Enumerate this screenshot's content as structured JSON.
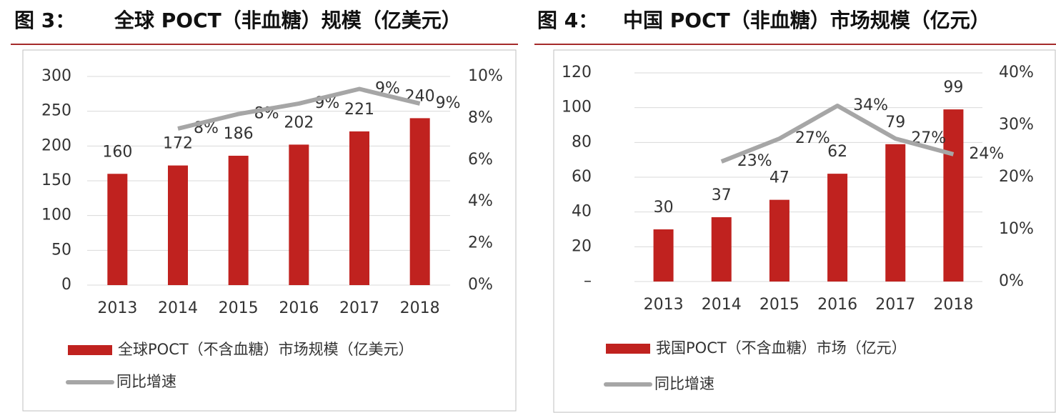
{
  "chart_data": [
    {
      "type": "bar",
      "label": "图 3：",
      "title": "全球 POCT（非血糖）规模（亿美元）",
      "categories": [
        "2013",
        "2014",
        "2015",
        "2016",
        "2017",
        "2018"
      ],
      "series": [
        {
          "name": "全球POCT（不含血糖）市场规模（亿美元）",
          "color": "#c0221f",
          "values": [
            160,
            172,
            186,
            202,
            221,
            240
          ]
        },
        {
          "name": "同比增速",
          "type": "line",
          "axis": "y2",
          "color": "#a6a6a6",
          "values": [
            null,
            7.5,
            8.2,
            8.7,
            9.4,
            8.7
          ],
          "value_labels": [
            null,
            "8%",
            "8%",
            "9%",
            "9%",
            "9%"
          ]
        }
      ],
      "ylim": [
        0,
        300
      ],
      "yticks": [
        0,
        50,
        100,
        150,
        200,
        250,
        300
      ],
      "y2lim": [
        0,
        10
      ],
      "y2ticks": [
        {
          "value": 0,
          "label": "0%"
        },
        {
          "value": 2,
          "label": "2%"
        },
        {
          "value": 4,
          "label": "4%"
        },
        {
          "value": 6,
          "label": "6%"
        },
        {
          "value": 8,
          "label": "8%"
        },
        {
          "value": 10,
          "label": "10%"
        }
      ],
      "grid": true
    },
    {
      "type": "bar",
      "label": "图 4：",
      "title": "中国 POCT（非血糖）市场规模（亿元）",
      "categories": [
        "2013",
        "2014",
        "2015",
        "2016",
        "2017",
        "2018"
      ],
      "series": [
        {
          "name": "我国POCT（不含血糖）市场（亿元）",
          "color": "#c0221f",
          "values": [
            30,
            37,
            47,
            62,
            79,
            99
          ]
        },
        {
          "name": "同比增速",
          "type": "line",
          "axis": "y2",
          "color": "#a6a6a6",
          "values": [
            null,
            23.0,
            27.4,
            33.7,
            27.4,
            24.4
          ],
          "value_labels": [
            null,
            "23%",
            "27%",
            "34%",
            "27%",
            "24%"
          ]
        }
      ],
      "ylim": [
        0,
        120
      ],
      "yticks": [
        {
          "value": 0,
          "label": "–"
        },
        20,
        40,
        60,
        80,
        100,
        120
      ],
      "y2lim": [
        0,
        40
      ],
      "y2ticks": [
        {
          "value": 0,
          "label": "0%"
        },
        {
          "value": 10,
          "label": "10%"
        },
        {
          "value": 20,
          "label": "20%"
        },
        {
          "value": 30,
          "label": "30%"
        },
        {
          "value": 40,
          "label": "40%"
        }
      ],
      "grid": true
    }
  ]
}
